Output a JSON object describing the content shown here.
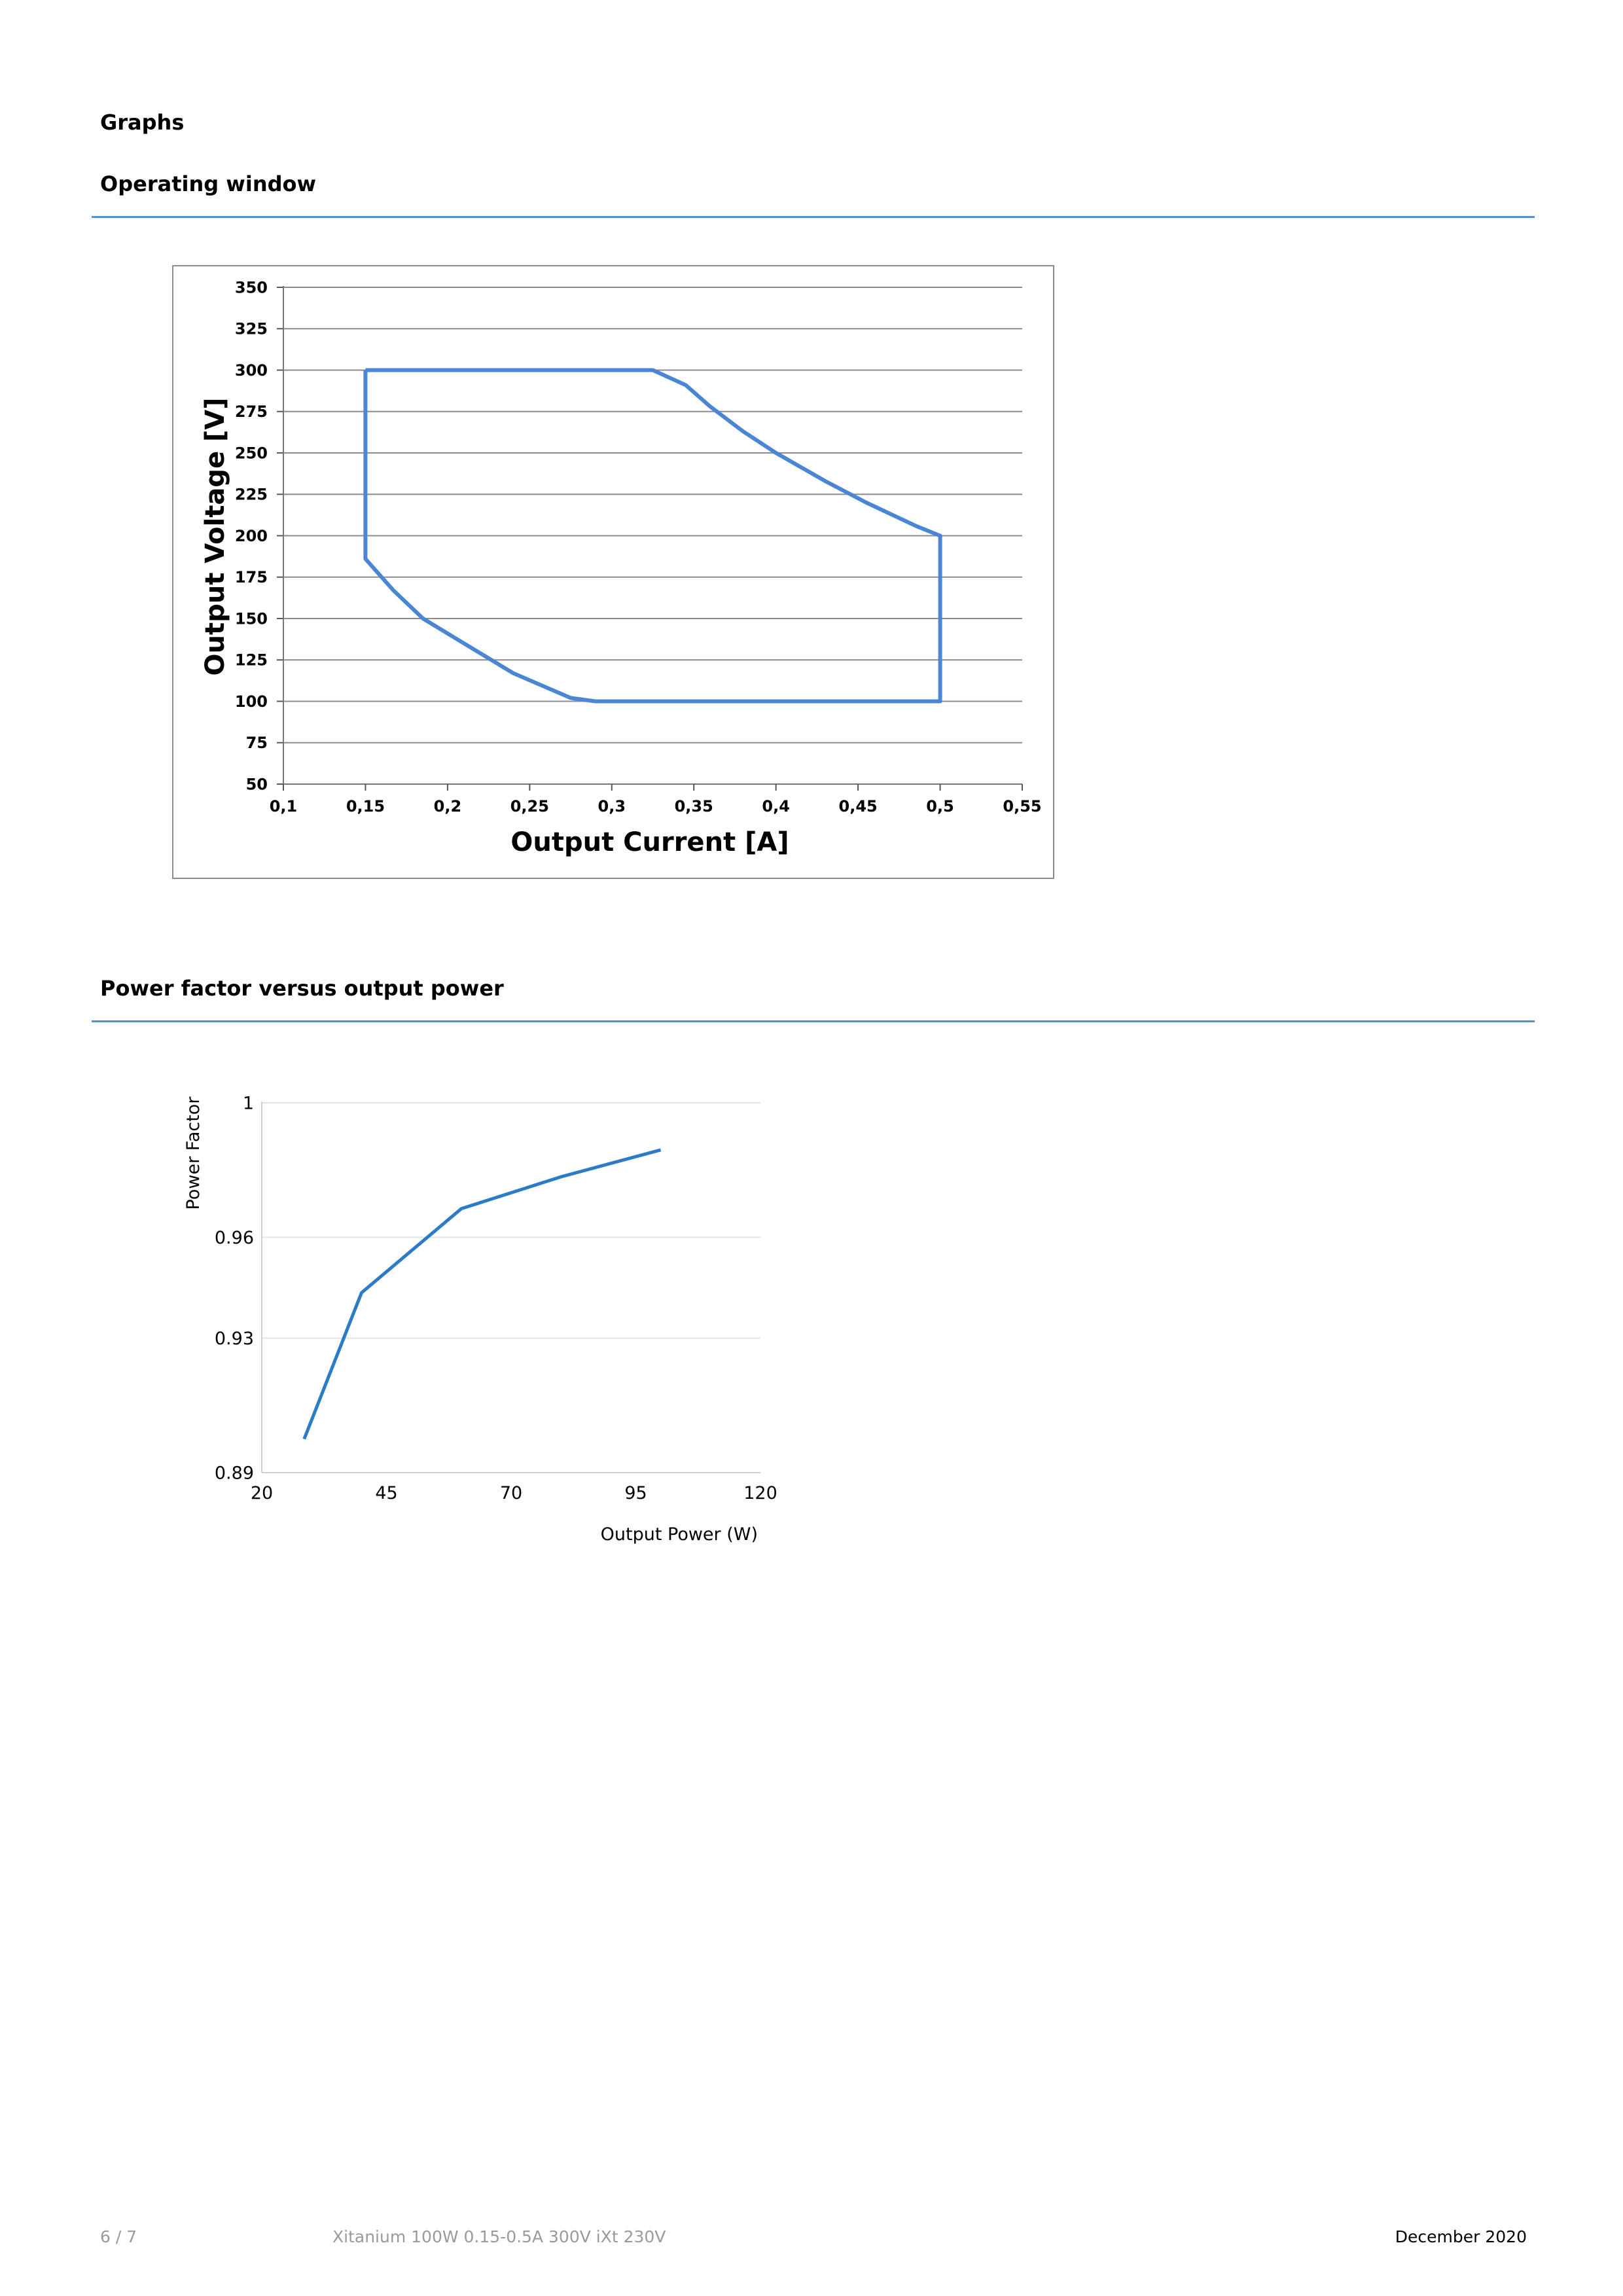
{
  "headings": {
    "graphs": "Graphs",
    "operating_window": "Operating window",
    "power_factor": "Power factor versus output power"
  },
  "footer": {
    "page": "6 / 7",
    "product": "Xitanium 100W 0.15-0.5A 300V iXt 230V",
    "date": "December 2020"
  },
  "colors": {
    "line": "#4a86d4",
    "line2": "#2b7bc7",
    "rule": "#5b8fca",
    "grid": "#8c8c8c"
  },
  "chart_data": [
    {
      "type": "line",
      "xlabel": "Output Current [A]",
      "ylabel": "Output Voltage [V]",
      "xlim": [
        0.1,
        0.55
      ],
      "ylim": [
        50,
        350
      ],
      "xticks": [
        "0,1",
        "0,15",
        "0,2",
        "0,25",
        "0,3",
        "0,35",
        "0,4",
        "0,45",
        "0,5",
        "0,55"
      ],
      "yticks": [
        "50",
        "75",
        "100",
        "125",
        "150",
        "175",
        "200",
        "225",
        "250",
        "275",
        "300",
        "325",
        "350"
      ],
      "grid": true,
      "series": [
        {
          "x": [
            0.15,
            0.325,
            0.345,
            0.36,
            0.38,
            0.4,
            0.43,
            0.455,
            0.485,
            0.5,
            0.5,
            0.29,
            0.275,
            0.24,
            0.205,
            0.185,
            0.167,
            0.15,
            0.15
          ],
          "y": [
            300,
            300,
            291,
            278,
            263,
            250,
            233,
            220,
            206,
            200,
            100,
            100,
            102,
            117,
            138,
            150,
            167,
            186,
            300
          ]
        }
      ]
    },
    {
      "type": "line",
      "xlabel": "Output Power (W)",
      "ylabel": "Power Factor",
      "xlim": [
        20,
        120
      ],
      "ylim": [
        0.89,
        1
      ],
      "xticks": [
        "20",
        "45",
        "70",
        "95",
        "120"
      ],
      "yticks": [
        "0.89",
        "0.93",
        "0.96",
        "1"
      ],
      "grid": true,
      "series": [
        {
          "x": [
            28.5,
            40,
            60,
            80,
            100
          ],
          "y": [
            0.9,
            0.9435,
            0.9685,
            0.978,
            0.986
          ]
        }
      ]
    }
  ]
}
